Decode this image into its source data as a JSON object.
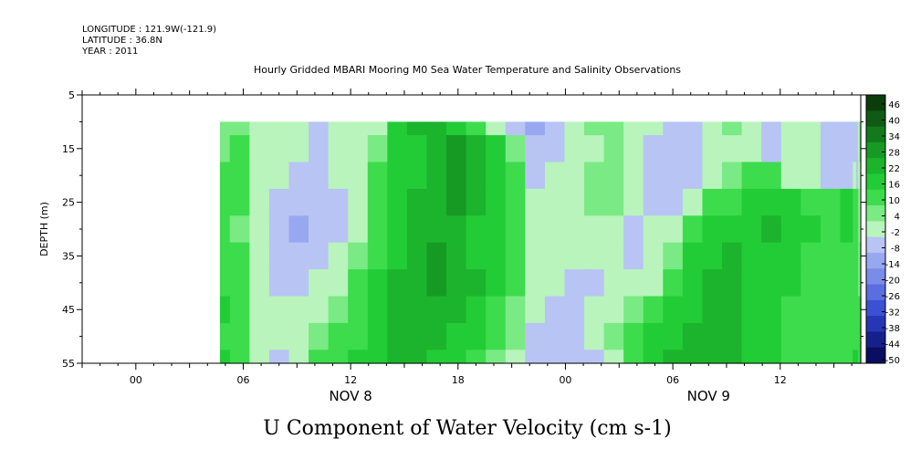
{
  "meta": {
    "longitude": "LONGITUDE : 121.9W(-121.9)",
    "latitude": "LATITUDE : 36.8N",
    "year": "YEAR : 2011"
  },
  "chart_data": {
    "type": "heatmap",
    "title": "Hourly Gridded MBARI Mooring M0 Sea Water Temperature and Salinity Observations",
    "caption": "U Component of Water Velocity (cm s-1)",
    "ylabel": "DEPTH (m)",
    "y_ticks": [
      "5",
      "15",
      "25",
      "35",
      "45",
      "55"
    ],
    "y_tick_values": [
      5,
      15,
      25,
      35,
      45,
      55
    ],
    "ylim": [
      5,
      55
    ],
    "y_inverted": true,
    "x_ticks": [
      "00",
      "06",
      "12",
      "18",
      "00",
      "06",
      "12"
    ],
    "x_tick_hours": [
      0,
      6,
      12,
      18,
      24,
      30,
      36
    ],
    "x_date_labels": [
      {
        "label": "NOV  8",
        "hour": 12
      },
      {
        "label": "NOV  9",
        "hour": 32
      }
    ],
    "xlim_hours": [
      -3,
      40.5
    ],
    "data_start_hour": 4.7,
    "data_top_depth": 10,
    "colorbar": {
      "levels": [
        "46",
        "40",
        "34",
        "28",
        "22",
        "16",
        "10",
        "4",
        "-2",
        "-8",
        "-14",
        "-20",
        "-26",
        "-32",
        "-38",
        "-44",
        "-50"
      ],
      "colors": [
        "#0a3d0a",
        "#0f5a14",
        "#137a1c",
        "#169a24",
        "#1cb42c",
        "#22cc36",
        "#3cdc4c",
        "#7aea84",
        "#b8f4bc",
        "#b8c4f4",
        "#98a8f0",
        "#7a8ce8",
        "#5a6ee0",
        "#3c50d4",
        "#2636b4",
        "#16208c",
        "#0a0e60"
      ]
    },
    "series": [
      {
        "depth": 10,
        "values": [
          2,
          3,
          -6,
          -8,
          -8,
          -9,
          -6,
          -4,
          -4,
          14,
          18,
          16,
          12,
          8,
          -4,
          -12,
          -16,
          -10,
          -6,
          -2,
          3,
          -6,
          -8,
          -12,
          -10,
          -8,
          -2,
          -6,
          -12,
          -8,
          -6,
          -10,
          -12,
          -10,
          -12,
          -8,
          -2,
          4
        ]
      },
      {
        "depth": 15,
        "values": [
          3,
          4,
          -4,
          -6,
          -8,
          -10,
          -6,
          -3,
          2,
          12,
          14,
          18,
          22,
          16,
          10,
          2,
          -12,
          -12,
          -8,
          -4,
          2,
          -8,
          -12,
          -12,
          -10,
          -6,
          -4,
          -8,
          -10,
          -8,
          -6,
          -10,
          -12,
          -10,
          -12,
          -8,
          2,
          6
        ]
      },
      {
        "depth": 20,
        "values": [
          4,
          6,
          -3,
          -6,
          -10,
          -12,
          -8,
          -4,
          4,
          12,
          14,
          18,
          24,
          20,
          12,
          6,
          -10,
          -8,
          -6,
          -2,
          0,
          -8,
          -12,
          -12,
          -10,
          -6,
          -2,
          4,
          6,
          -4,
          -6,
          -10,
          -12,
          -8,
          -10,
          -8,
          -4,
          6
        ]
      },
      {
        "depth": 25,
        "values": [
          6,
          4,
          -6,
          -10,
          -14,
          -14,
          -10,
          -6,
          4,
          12,
          16,
          20,
          22,
          18,
          12,
          8,
          -8,
          -8,
          -4,
          0,
          -2,
          -8,
          -10,
          -10,
          -6,
          4,
          8,
          10,
          12,
          10,
          8,
          8,
          10,
          6,
          4,
          -2,
          -6,
          4
        ]
      },
      {
        "depth": 30,
        "values": [
          4,
          2,
          -8,
          -14,
          -16,
          -14,
          -10,
          -4,
          6,
          14,
          18,
          20,
          18,
          14,
          10,
          4,
          -6,
          -6,
          -4,
          -4,
          -6,
          -10,
          -8,
          -4,
          4,
          10,
          14,
          14,
          16,
          14,
          10,
          8,
          10,
          8,
          4,
          2,
          -4,
          2
        ]
      },
      {
        "depth": 35,
        "values": [
          6,
          4,
          -6,
          -12,
          -12,
          -12,
          -8,
          2,
          8,
          14,
          18,
          22,
          20,
          14,
          12,
          6,
          -4,
          -6,
          -6,
          -8,
          -8,
          -10,
          -6,
          2,
          10,
          14,
          16,
          14,
          12,
          10,
          8,
          6,
          6,
          4,
          4,
          2,
          -2,
          4
        ]
      },
      {
        "depth": 40,
        "values": [
          8,
          6,
          -4,
          -10,
          -10,
          -8,
          -4,
          6,
          10,
          16,
          20,
          22,
          18,
          16,
          12,
          4,
          -6,
          -8,
          -10,
          -10,
          -8,
          -6,
          -4,
          4,
          12,
          16,
          18,
          14,
          12,
          10,
          6,
          4,
          4,
          4,
          4,
          2,
          2,
          6
        ]
      },
      {
        "depth": 45,
        "values": [
          10,
          6,
          -4,
          -8,
          -6,
          -4,
          2,
          8,
          12,
          18,
          20,
          18,
          16,
          14,
          8,
          2,
          -8,
          -10,
          -10,
          -8,
          -4,
          2,
          6,
          10,
          14,
          16,
          18,
          14,
          12,
          8,
          6,
          6,
          6,
          6,
          6,
          4,
          4,
          8
        ]
      },
      {
        "depth": 50,
        "values": [
          8,
          4,
          -6,
          -8,
          -4,
          2,
          6,
          8,
          12,
          16,
          18,
          16,
          14,
          10,
          6,
          -2,
          -10,
          -12,
          -12,
          -8,
          -2,
          4,
          10,
          14,
          16,
          18,
          18,
          14,
          10,
          8,
          6,
          6,
          6,
          8,
          8,
          6,
          4,
          8
        ]
      },
      {
        "depth": 55,
        "values": [
          10,
          6,
          -6,
          -10,
          -4,
          4,
          8,
          10,
          14,
          16,
          16,
          14,
          12,
          8,
          2,
          -6,
          -12,
          -14,
          -12,
          -10,
          -4,
          6,
          12,
          16,
          18,
          20,
          18,
          14,
          10,
          8,
          6,
          6,
          8,
          10,
          10,
          8,
          6,
          10
        ]
      }
    ],
    "x_hours": [
      4.7,
      5.8,
      6.9,
      8.0,
      9.1,
      10.2,
      11.3,
      12.4,
      13.5,
      14.6,
      15.7,
      16.8,
      17.9,
      19.0,
      20.1,
      21.2,
      22.3,
      23.4,
      24.5,
      25.6,
      26.7,
      27.8,
      28.9,
      30.0,
      31.1,
      32.2,
      33.3,
      34.4,
      35.5,
      36.6,
      37.7,
      38.8,
      39.9,
      40.2,
      40.3,
      40.4,
      40.45,
      40.5
    ]
  }
}
